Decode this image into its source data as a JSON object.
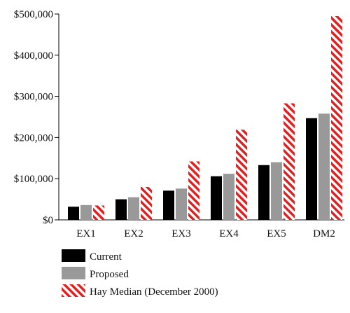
{
  "chart_data": {
    "type": "bar",
    "title": "",
    "xlabel": "",
    "ylabel": "",
    "categories": [
      "EX1",
      "EX2",
      "EX3",
      "EX4",
      "EX5",
      "DM2"
    ],
    "series": [
      {
        "name": "Current",
        "color": "#000000",
        "pattern": "solid",
        "values": [
          32000,
          50000,
          71000,
          106000,
          133000,
          247000
        ]
      },
      {
        "name": "Proposed",
        "color": "#999999",
        "pattern": "solid",
        "values": [
          36000,
          55000,
          76000,
          112000,
          140000,
          258000
        ]
      },
      {
        "name": "Hay Median (December 2000)",
        "color": "#e02020",
        "pattern": "diagonal-stripes",
        "values": [
          35000,
          80000,
          142000,
          219000,
          283000,
          495000
        ]
      }
    ],
    "ylim": [
      0,
      500000
    ],
    "yticks": [
      0,
      100000,
      200000,
      300000,
      400000,
      500000
    ],
    "ytick_labels": [
      "$0",
      "$100,000",
      "$200,000",
      "$300,000",
      "$400,000",
      "$500,000"
    ],
    "grid": false,
    "legend_position": "bottom-left"
  }
}
